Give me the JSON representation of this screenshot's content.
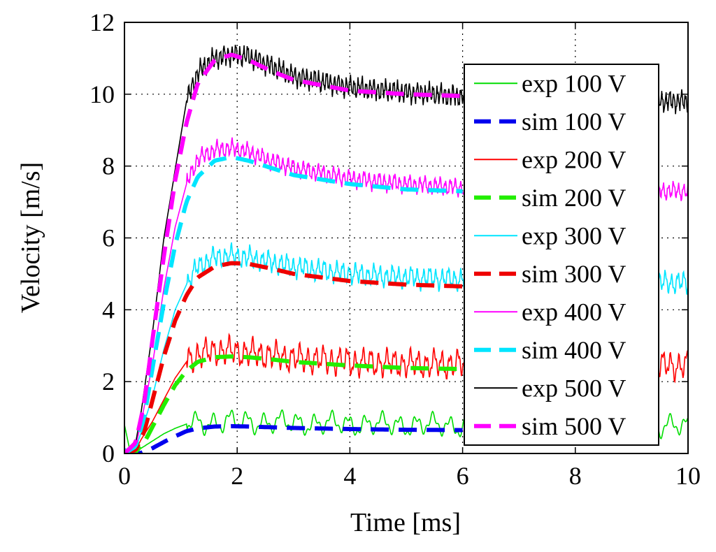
{
  "chart_data": {
    "type": "line",
    "title": "",
    "xlabel": "Time [ms]",
    "ylabel": "Velocity [m/s]",
    "xlim": [
      0,
      10
    ],
    "ylim": [
      0,
      12
    ],
    "x_ticks": [
      0,
      2,
      4,
      6,
      8,
      10
    ],
    "y_ticks": [
      0,
      2,
      4,
      6,
      8,
      10,
      12
    ],
    "grid": "dotted",
    "legend_position": "right",
    "series": [
      {
        "name": "exp 100 V",
        "style": "solid",
        "color": "#00dd00",
        "noise": 0.22,
        "osc_period": 0.3,
        "x": [
          0,
          0.1,
          0.2,
          0.3,
          0.5,
          0.7,
          0.9,
          1.1,
          1.3,
          1.6,
          1.9,
          2.2,
          3,
          4,
          5,
          6,
          8,
          10
        ],
        "y": [
          0.8,
          0.05,
          0.05,
          0.15,
          0.35,
          0.55,
          0.7,
          0.82,
          0.86,
          0.87,
          0.88,
          0.88,
          0.85,
          0.82,
          0.8,
          0.78,
          0.76,
          0.75
        ]
      },
      {
        "name": "sim 100 V",
        "style": "dashed",
        "color": "#0000ee",
        "noise": 0,
        "osc_period": 0,
        "x": [
          0,
          0.2,
          0.3,
          0.5,
          0.7,
          0.9,
          1.1,
          1.3,
          1.6,
          1.9,
          2.2,
          2.6,
          3,
          4,
          5,
          6
        ],
        "y": [
          0,
          0,
          0.02,
          0.15,
          0.32,
          0.48,
          0.62,
          0.7,
          0.75,
          0.76,
          0.75,
          0.73,
          0.71,
          0.68,
          0.66,
          0.65
        ]
      },
      {
        "name": "exp 200 V",
        "style": "solid",
        "color": "#ff0000",
        "noise": 0.28,
        "osc_period": 0.14,
        "x": [
          0,
          0.1,
          0.2,
          0.3,
          0.5,
          0.7,
          0.9,
          1.1,
          1.3,
          1.6,
          1.9,
          2.2,
          2.5,
          3,
          4,
          5,
          6,
          8,
          10
        ],
        "y": [
          0.1,
          0.05,
          0.1,
          0.4,
          0.9,
          1.5,
          2.1,
          2.55,
          2.75,
          2.85,
          2.85,
          2.8,
          2.75,
          2.65,
          2.55,
          2.5,
          2.48,
          2.46,
          2.45
        ]
      },
      {
        "name": "sim 200 V",
        "style": "dashed",
        "color": "#22ee00",
        "noise": 0,
        "osc_period": 0,
        "x": [
          0,
          0.2,
          0.35,
          0.5,
          0.7,
          0.9,
          1.1,
          1.3,
          1.6,
          1.9,
          2.2,
          2.6,
          3,
          4,
          5,
          6
        ],
        "y": [
          0,
          0.05,
          0.3,
          0.75,
          1.35,
          1.9,
          2.3,
          2.55,
          2.68,
          2.7,
          2.68,
          2.62,
          2.55,
          2.45,
          2.38,
          2.35
        ]
      },
      {
        "name": "exp 300 V",
        "style": "solid",
        "color": "#00e5ff",
        "noise": 0.22,
        "osc_period": 0.11,
        "x": [
          0,
          0.1,
          0.2,
          0.3,
          0.5,
          0.7,
          0.9,
          1.1,
          1.3,
          1.6,
          1.9,
          2.2,
          2.5,
          3,
          4,
          5,
          6,
          8,
          10
        ],
        "y": [
          0.15,
          0.05,
          0.15,
          0.6,
          1.6,
          2.9,
          4.0,
          4.7,
          5.2,
          5.45,
          5.5,
          5.45,
          5.35,
          5.2,
          5.0,
          4.9,
          4.85,
          4.8,
          4.75
        ]
      },
      {
        "name": "sim 300 V",
        "style": "dashed",
        "color": "#ee0000",
        "noise": 0,
        "osc_period": 0,
        "x": [
          0,
          0.2,
          0.35,
          0.5,
          0.7,
          0.9,
          1.1,
          1.3,
          1.6,
          1.9,
          2.2,
          2.6,
          3,
          4,
          5,
          6
        ],
        "y": [
          0,
          0.1,
          0.6,
          1.5,
          2.7,
          3.7,
          4.4,
          4.9,
          5.2,
          5.3,
          5.28,
          5.15,
          5.0,
          4.8,
          4.7,
          4.65
        ]
      },
      {
        "name": "exp 400 V",
        "style": "solid",
        "color": "#ff00ff",
        "noise": 0.18,
        "osc_period": 0.09,
        "x": [
          0,
          0.1,
          0.2,
          0.3,
          0.5,
          0.7,
          0.9,
          1.1,
          1.3,
          1.6,
          1.9,
          2.2,
          2.5,
          3,
          4,
          5,
          6,
          8,
          10
        ],
        "y": [
          0.1,
          0.05,
          0.2,
          0.9,
          2.5,
          4.6,
          6.3,
          7.5,
          8.2,
          8.45,
          8.5,
          8.4,
          8.2,
          7.95,
          7.65,
          7.5,
          7.4,
          7.35,
          7.3
        ]
      },
      {
        "name": "sim 400 V",
        "style": "dashed",
        "color": "#00e5ff",
        "noise": 0,
        "osc_period": 0,
        "x": [
          0,
          0.2,
          0.35,
          0.5,
          0.7,
          0.9,
          1.1,
          1.3,
          1.6,
          1.9,
          2.2,
          2.6,
          3,
          4,
          5,
          6
        ],
        "y": [
          0,
          0.2,
          1.0,
          2.4,
          4.2,
          5.8,
          7.0,
          7.7,
          8.15,
          8.25,
          8.15,
          7.95,
          7.75,
          7.5,
          7.35,
          7.3
        ]
      },
      {
        "name": "exp 500 V",
        "style": "solid",
        "color": "#000000",
        "noise": 0.22,
        "osc_period": 0.07,
        "x": [
          0,
          0.1,
          0.2,
          0.3,
          0.5,
          0.7,
          0.9,
          1.1,
          1.3,
          1.6,
          1.9,
          2.2,
          2.5,
          3,
          4,
          5,
          6,
          8,
          10
        ],
        "y": [
          0.1,
          0.05,
          0.3,
          1.2,
          3.4,
          6.0,
          7.9,
          9.8,
          10.6,
          11.0,
          11.1,
          11.05,
          10.85,
          10.5,
          10.2,
          10.05,
          9.95,
          9.85,
          9.8
        ]
      },
      {
        "name": "sim 500 V",
        "style": "dashed",
        "color": "#ff00ff",
        "noise": 0,
        "osc_period": 0,
        "x": [
          0,
          0.2,
          0.35,
          0.5,
          0.7,
          0.9,
          1.1,
          1.3,
          1.6,
          1.9,
          2.2,
          2.6,
          3,
          4,
          5,
          6
        ],
        "y": [
          0,
          0.3,
          1.4,
          3.2,
          5.5,
          7.6,
          9.2,
          10.3,
          10.95,
          11.1,
          10.95,
          10.65,
          10.4,
          10.1,
          10.0,
          9.95
        ]
      }
    ]
  }
}
